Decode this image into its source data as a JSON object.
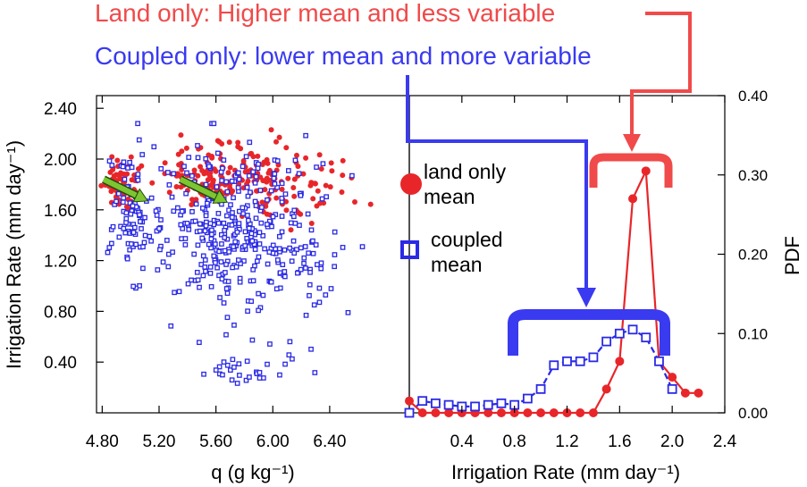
{
  "colors": {
    "land": "#e8262a",
    "coupled": "#2a2ae6",
    "arrow": "#7ec631",
    "annot_land": "#f04a4a",
    "annot_coupled": "#3a3af0"
  },
  "annotations": {
    "land": "Land only: Higher mean and less variable",
    "coupled": "Coupled only: lower mean and more variable"
  },
  "legend": {
    "land_l1": "land only",
    "land_l2": "mean",
    "coupled_l1": "coupled",
    "coupled_l2": "mean"
  },
  "chart_data": [
    {
      "type": "scatter",
      "title": "",
      "xlabel": "q (g kg⁻¹)",
      "ylabel": "Irrigation Rate (mm day⁻¹)",
      "xlim": [
        4.76,
        6.96
      ],
      "ylim": [
        0.0,
        2.5
      ],
      "xticks": [
        "4.80",
        "5.20",
        "5.60",
        "6.00",
        "6.40"
      ],
      "yticks": [
        "0.40",
        "0.80",
        "1.20",
        "1.60",
        "2.00",
        "2.40"
      ],
      "series": [
        {
          "name": "land only mean",
          "marker": "filled-circle",
          "color": "#e8262a",
          "clusters": [
            {
              "cx": 4.95,
              "cy": 1.8,
              "sx": 0.07,
              "sy": 0.11,
              "n": 60
            },
            {
              "cx": 5.62,
              "cy": 1.86,
              "sx": 0.2,
              "sy": 0.14,
              "n": 140
            },
            {
              "cx": 6.1,
              "cy": 1.8,
              "sx": 0.22,
              "sy": 0.16,
              "n": 80
            }
          ]
        },
        {
          "name": "coupled mean",
          "marker": "open-square",
          "color": "#2a2ae6",
          "clusters": [
            {
              "cx": 5.0,
              "cy": 1.55,
              "sx": 0.07,
              "sy": 0.25,
              "n": 90
            },
            {
              "cx": 5.7,
              "cy": 1.45,
              "sx": 0.22,
              "sy": 0.32,
              "n": 320
            },
            {
              "cx": 5.85,
              "cy": 0.35,
              "sx": 0.2,
              "sy": 0.08,
              "n": 28
            },
            {
              "cx": 6.2,
              "cy": 1.3,
              "sx": 0.2,
              "sy": 0.35,
              "n": 70
            }
          ]
        }
      ],
      "arrows": [
        {
          "from": [
            4.81,
            1.84
          ],
          "to": [
            5.12,
            1.67
          ]
        },
        {
          "from": [
            5.35,
            1.84
          ],
          "to": [
            5.68,
            1.66
          ]
        }
      ]
    },
    {
      "type": "line",
      "title": "",
      "xlabel": "Irrigation Rate (mm day⁻¹)",
      "ylabel": "PDF",
      "xlim": [
        0.0,
        2.4
      ],
      "ylim": [
        0.0,
        0.4
      ],
      "xticks": [
        "0.4",
        "0.8",
        "1.2",
        "1.6",
        "2.0",
        "2.4"
      ],
      "yticks": [
        "0.00",
        "0.10",
        "0.20",
        "0.30",
        "0.40"
      ],
      "series": [
        {
          "name": "land only",
          "color": "#e8262a",
          "style": "solid",
          "marker": "filled-circle",
          "x": [
            0.0,
            0.1,
            0.2,
            0.3,
            0.4,
            0.5,
            0.6,
            0.7,
            0.8,
            0.9,
            1.0,
            1.1,
            1.2,
            1.3,
            1.4,
            1.5,
            1.6,
            1.7,
            1.8,
            1.9,
            2.0,
            2.1,
            2.2
          ],
          "y": [
            0.015,
            0.0,
            0.0,
            0.0,
            0.0,
            0.0,
            0.0,
            0.0,
            0.0,
            0.0,
            0.0,
            0.0,
            0.0,
            0.0,
            0.0,
            0.03,
            0.065,
            0.27,
            0.305,
            0.065,
            0.045,
            0.025,
            0.025
          ]
        },
        {
          "name": "coupled",
          "color": "#2a2ae6",
          "style": "dashed",
          "marker": "open-square",
          "x": [
            0.0,
            0.1,
            0.2,
            0.3,
            0.4,
            0.5,
            0.6,
            0.7,
            0.8,
            0.9,
            1.0,
            1.1,
            1.2,
            1.3,
            1.4,
            1.5,
            1.6,
            1.7,
            1.8,
            1.9,
            2.0
          ],
          "y": [
            0.0,
            0.015,
            0.012,
            0.01,
            0.008,
            0.008,
            0.01,
            0.012,
            0.01,
            0.018,
            0.03,
            0.06,
            0.065,
            0.065,
            0.07,
            0.09,
            0.1,
            0.105,
            0.095,
            0.065,
            0.03
          ]
        }
      ]
    }
  ]
}
